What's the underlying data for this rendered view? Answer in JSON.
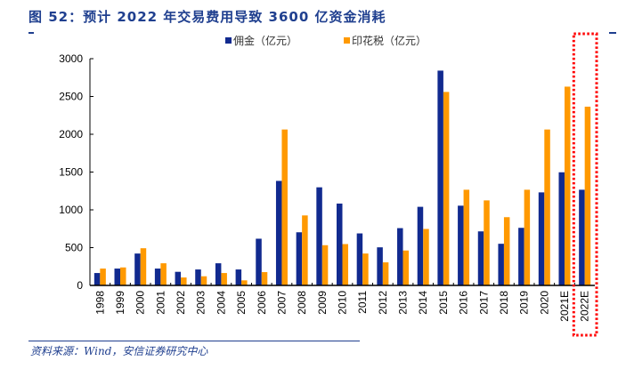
{
  "header": {
    "title": "图 52：预计 2022 年交易费用导致 3600 亿资金消耗"
  },
  "footer": {
    "source": "资料来源：Wind，安信证券研究中心"
  },
  "colors": {
    "title": "#1f3f8f",
    "commission": "#112a8f",
    "stamp_tax": "#ff9900",
    "highlight_box": "#ff0000"
  },
  "chart_data": {
    "type": "bar",
    "title": "预计 2022 年交易费用导致 3600 亿资金消耗",
    "xlabel": "",
    "ylabel": "",
    "ylim": [
      0,
      3000
    ],
    "yticks": [
      0,
      500,
      1000,
      1500,
      2000,
      2500,
      3000
    ],
    "grid": false,
    "legend_position": "top-center",
    "categories": [
      "1998",
      "1999",
      "2000",
      "2001",
      "2002",
      "2003",
      "2004",
      "2005",
      "2006",
      "2007",
      "2008",
      "2009",
      "2010",
      "2011",
      "2012",
      "2013",
      "2014",
      "2015",
      "2016",
      "2017",
      "2018",
      "2019",
      "2020",
      "2021E",
      "2022E"
    ],
    "series": [
      {
        "name": "佣金（亿元）",
        "values": [
          164,
          223,
          422,
          223,
          180,
          211,
          293,
          211,
          618,
          1383,
          703,
          1298,
          1083,
          688,
          504,
          758,
          1040,
          2842,
          1055,
          715,
          551,
          762,
          1231,
          1497,
          1266
        ]
      },
      {
        "name": "印花税（亿元）",
        "values": [
          223,
          238,
          492,
          293,
          105,
          121,
          164,
          67,
          176,
          2063,
          926,
          532,
          547,
          422,
          305,
          462,
          747,
          2560,
          1266,
          1125,
          903,
          1266,
          2063,
          2630,
          2365
        ]
      }
    ],
    "annotations": [
      {
        "type": "highlight-box",
        "category": "2022E",
        "style": "red dotted"
      }
    ]
  }
}
